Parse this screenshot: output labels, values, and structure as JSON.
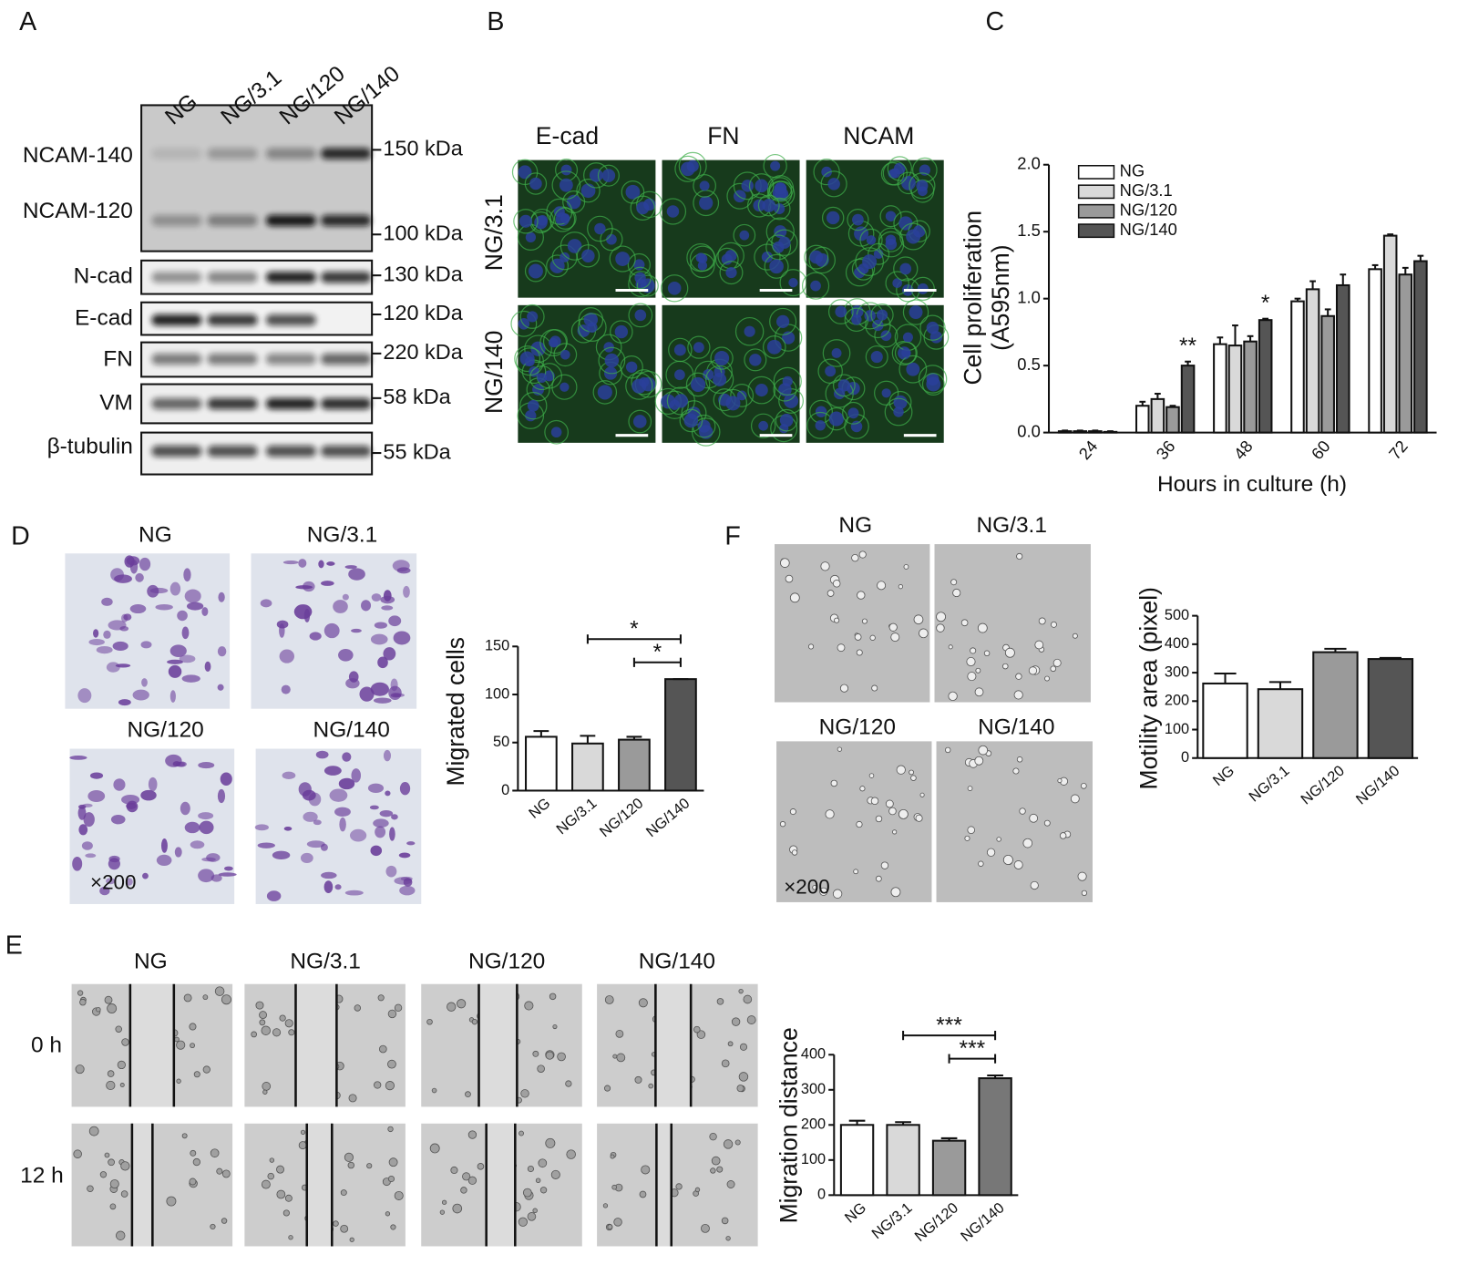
{
  "panel_labels": [
    "A",
    "B",
    "C",
    "D",
    "E",
    "F"
  ],
  "blot": {
    "lanes": [
      "NG",
      "NG/3.1",
      "NG/120",
      "NG/140"
    ],
    "proteins": [
      "NCAM-140",
      "NCAM-120",
      "N-cad",
      "E-cad",
      "FN",
      "VM",
      "β-tubulin"
    ],
    "markers": [
      "150 kDa",
      "100 kDa",
      "130 kDa",
      "120 kDa",
      "220 kDa",
      "58 kDa",
      "55 kDa"
    ]
  },
  "immunofluorescence": {
    "columns": [
      "E-cad",
      "FN",
      "NCAM"
    ],
    "rows": [
      "NG/3.1",
      "NG/140"
    ]
  },
  "transwell": {
    "images": [
      "NG",
      "NG/3.1",
      "NG/120",
      "NG/140"
    ],
    "magnification": "×200"
  },
  "motility": {
    "images": [
      "NG",
      "NG/3.1",
      "NG/120",
      "NG/140"
    ],
    "magnification": "×200"
  },
  "wound": {
    "columns": [
      "NG",
      "NG/3.1",
      "NG/120",
      "NG/140"
    ],
    "rows": [
      "0 h",
      "12 h"
    ]
  },
  "chart_data": [
    {
      "type": "bar",
      "ylabel": [
        "Cell proliferation",
        "(A595nm)"
      ],
      "xlabel": "Hours in culture (h)",
      "categories": [
        "24",
        "36",
        "48",
        "60",
        "72"
      ],
      "series": [
        {
          "name": "NG",
          "color": "#ffffff",
          "values": [
            0.01,
            0.2,
            0.66,
            0.98,
            1.22
          ],
          "errors": [
            0.005,
            0.03,
            0.05,
            0.02,
            0.03
          ]
        },
        {
          "name": "NG/3.1",
          "color": "#d9d9d9",
          "values": [
            0.01,
            0.25,
            0.65,
            1.07,
            1.47
          ],
          "errors": [
            0.005,
            0.04,
            0.15,
            0.06,
            0.01
          ]
        },
        {
          "name": "NG/120",
          "color": "#9a9a9a",
          "values": [
            0.01,
            0.19,
            0.68,
            0.87,
            1.18
          ],
          "errors": [
            0.005,
            0.01,
            0.04,
            0.05,
            0.05
          ]
        },
        {
          "name": "NG/140",
          "color": "#555555",
          "values": [
            0.005,
            0.5,
            0.84,
            1.1,
            1.28
          ],
          "errors": [
            0.005,
            0.03,
            0.01,
            0.08,
            0.04
          ]
        }
      ],
      "ylim": [
        0,
        2.0
      ],
      "yticks": [
        {
          "value": 0,
          "label": "0.0"
        },
        {
          "value": 0.5,
          "label": "0.5"
        },
        {
          "value": 1,
          "label": "1.0"
        },
        {
          "value": 1.5,
          "label": "1.5"
        },
        {
          "value": 2,
          "label": "2.0"
        }
      ],
      "legend": "upper left",
      "grid": false,
      "annotations": [
        {
          "text": "**",
          "category": "36",
          "series": "NG/140"
        },
        {
          "text": "*",
          "category": "48",
          "series": "NG/140"
        }
      ]
    },
    {
      "type": "bar",
      "ylabel": [
        "Migrated cells"
      ],
      "categories": [
        "NG",
        "NG/3.1",
        "NG/120",
        "NG/140"
      ],
      "values": [
        56,
        49,
        53,
        116
      ],
      "errors": [
        6,
        8,
        3,
        0
      ],
      "colors": [
        "#ffffff",
        "#d9d9d9",
        "#9a9a9a",
        "#555555"
      ],
      "ylim": [
        0,
        150
      ],
      "yticks": [
        0,
        50,
        100,
        150
      ],
      "grid": false,
      "significance": [
        {
          "text": "*",
          "from": "NG/3.1",
          "to": "NG/140"
        },
        {
          "text": "*",
          "from": "NG/120",
          "to": "NG/140"
        }
      ]
    },
    {
      "type": "bar",
      "ylabel": [
        "Motility area (pixel)"
      ],
      "categories": [
        "NG",
        "NG/3.1",
        "NG/120",
        "NG/140"
      ],
      "values": [
        262,
        242,
        372,
        348
      ],
      "errors": [
        35,
        25,
        12,
        4
      ],
      "colors": [
        "#ffffff",
        "#d9d9d9",
        "#9a9a9a",
        "#555555"
      ],
      "ylim": [
        0,
        500
      ],
      "yticks": [
        0,
        100,
        200,
        300,
        400,
        500
      ],
      "grid": false
    },
    {
      "type": "bar",
      "ylabel": [
        "Migration distance"
      ],
      "categories": [
        "NG",
        "NG/3.1",
        "NG/120",
        "NG/140"
      ],
      "values": [
        200,
        200,
        155,
        333
      ],
      "errors": [
        12,
        8,
        7,
        8
      ],
      "colors": [
        "#ffffff",
        "#d9d9d9",
        "#9a9a9a",
        "#777777"
      ],
      "ylim": [
        0,
        400
      ],
      "yticks": [
        0,
        100,
        200,
        300,
        400
      ],
      "grid": false,
      "significance": [
        {
          "text": "***",
          "from": "NG/3.1",
          "to": "NG/140"
        },
        {
          "text": "***",
          "from": "NG/120",
          "to": "NG/140"
        }
      ]
    }
  ]
}
